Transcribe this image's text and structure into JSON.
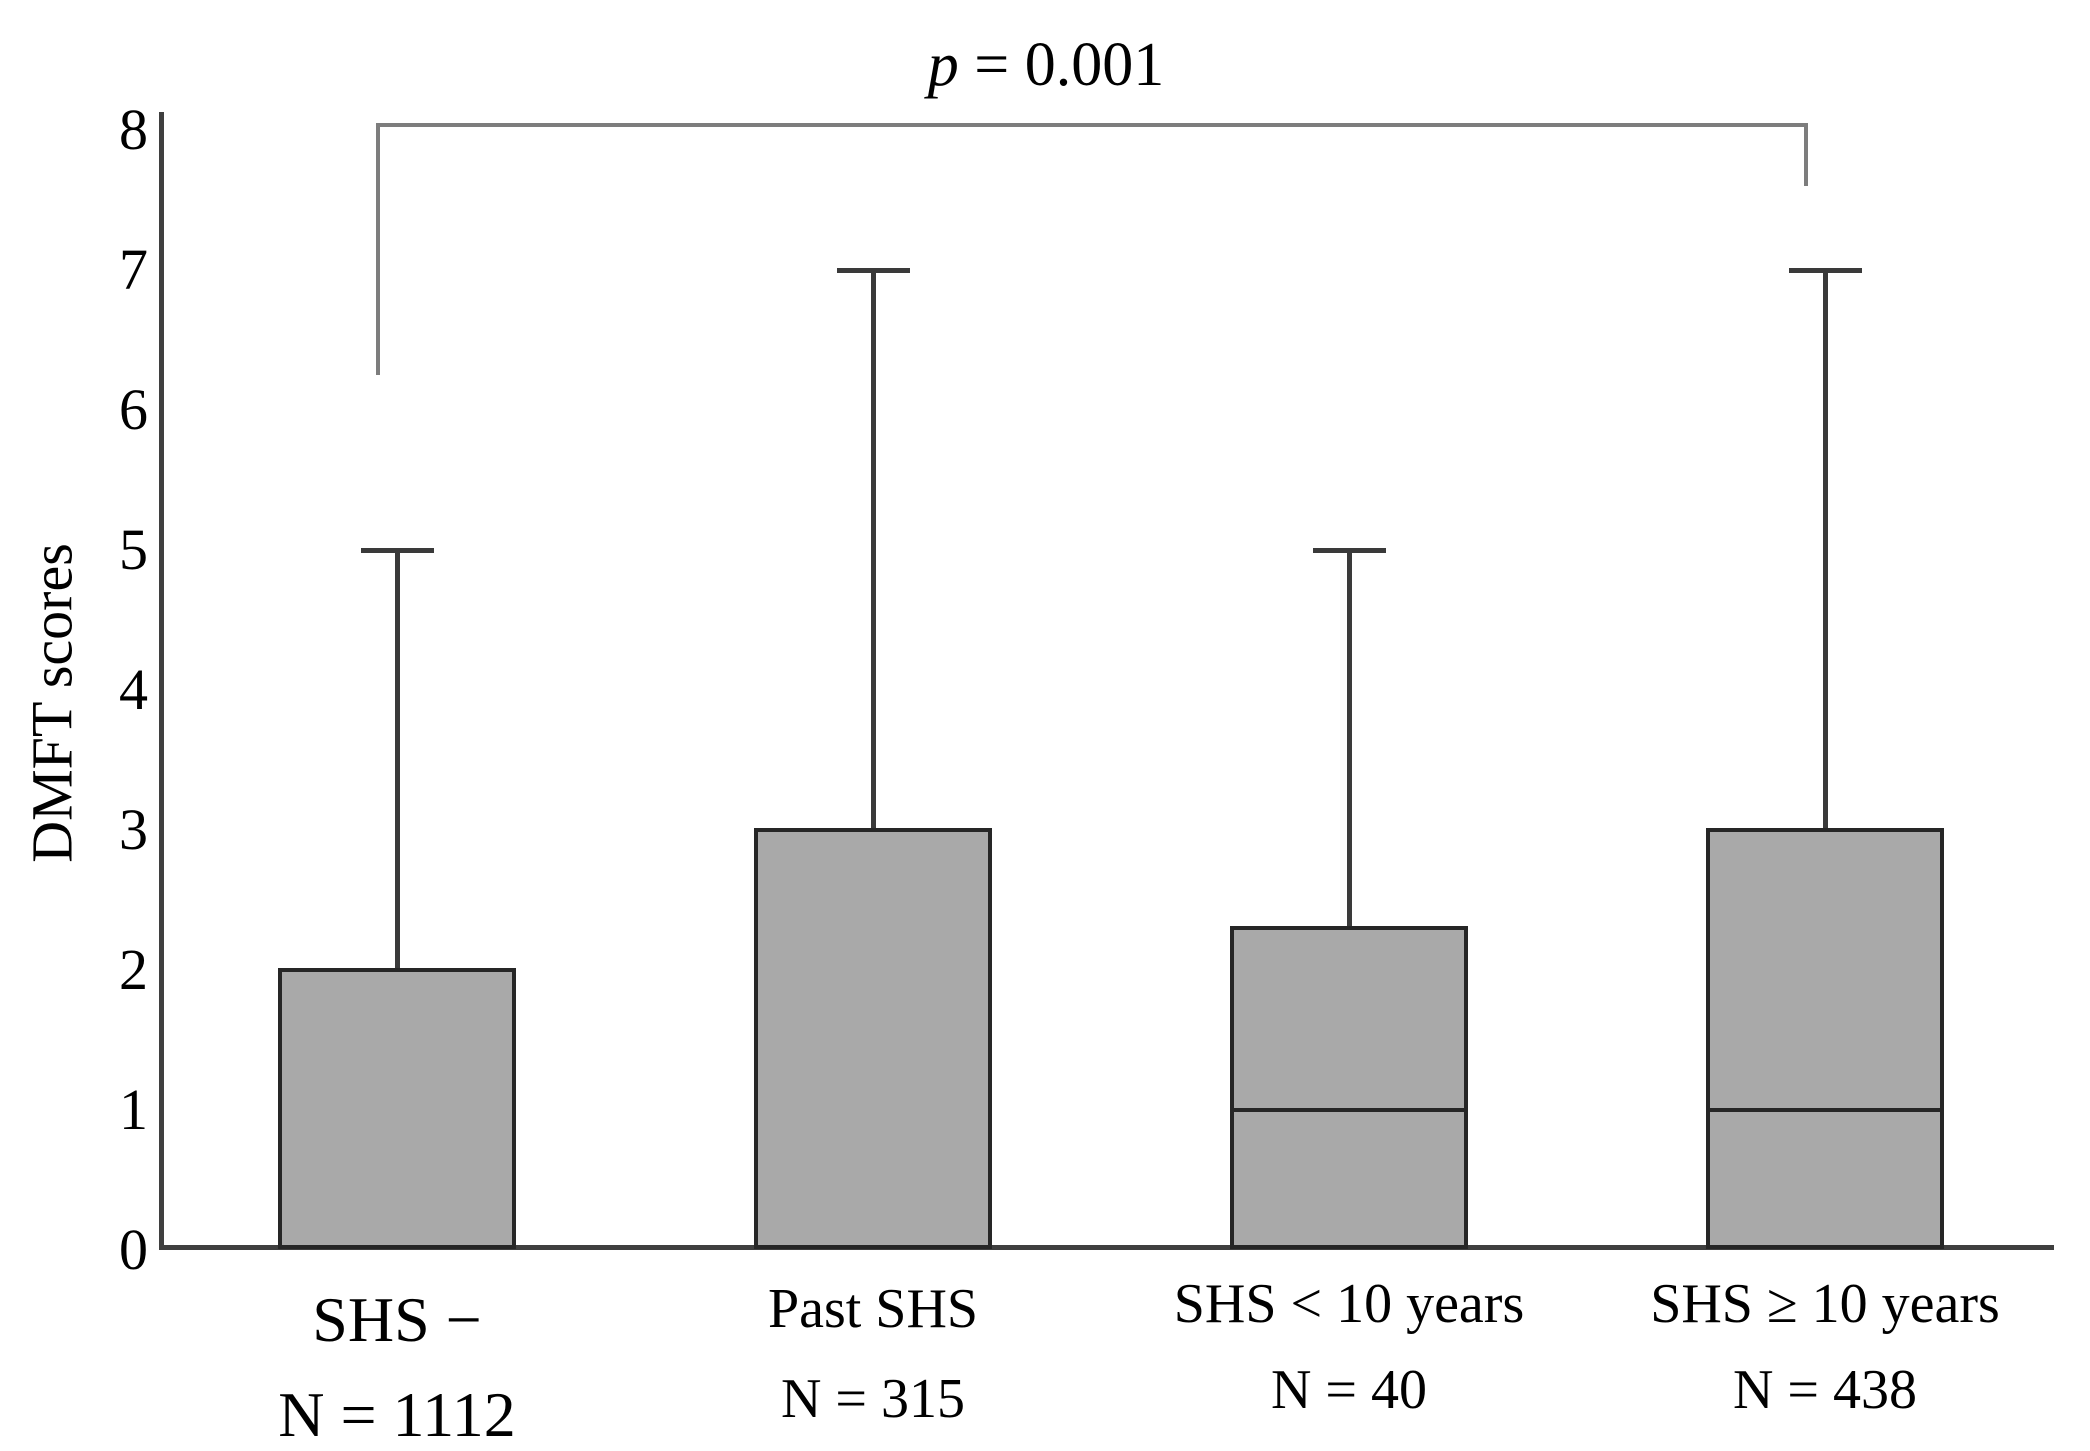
{
  "chart_data": {
    "type": "box",
    "title": "",
    "xlabel": "",
    "ylabel": "DMFT scores",
    "ylim": [
      0,
      8
    ],
    "yticks": [
      0,
      1,
      2,
      3,
      4,
      5,
      6,
      7,
      8
    ],
    "grid": false,
    "legend": null,
    "annotation": {
      "text": "p = 0.001",
      "italic_part": "p",
      "rest_part": " = 0.001",
      "connects": [
        "SHS −",
        "SHS ≥ 10 years"
      ],
      "bar_y": 8.05,
      "left_drop_to": 6.25,
      "right_drop_to": 7.6
    },
    "groups": [
      {
        "label": "SHS −",
        "n_label": "N = 1112",
        "n": 1112,
        "box_low": 0,
        "box_high": 2,
        "median": null,
        "whisker_low": 0,
        "whisker_high": 5
      },
      {
        "label": "Past SHS",
        "n_label": "N = 315",
        "n": 315,
        "box_low": 0,
        "box_high": 3,
        "median": null,
        "whisker_low": 0,
        "whisker_high": 7
      },
      {
        "label": "SHS < 10 years",
        "n_label": "N = 40",
        "n": 40,
        "box_low": 0,
        "box_high": 2.3,
        "median": 1,
        "whisker_low": 0,
        "whisker_high": 5
      },
      {
        "label": "SHS ≥ 10 years",
        "n_label": "N = 438",
        "n": 438,
        "box_low": 0,
        "box_high": 3,
        "median": 1,
        "whisker_low": 0,
        "whisker_high": 7
      }
    ],
    "colors": {
      "box_fill": "#a9a9a9",
      "box_border": "#262626",
      "whisker": "#3a3a3a",
      "axis": "#3f3f3f",
      "bracket": "#7d7d7d",
      "text": "#000000"
    }
  }
}
